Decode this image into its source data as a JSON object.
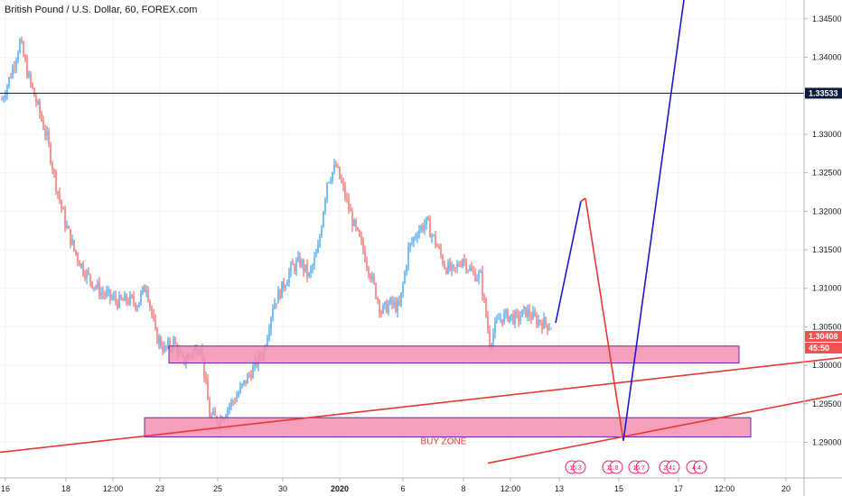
{
  "header": {
    "title": "British Pound / U.S. Dollar, 60, FOREX.com"
  },
  "chart_data": {
    "type": "candlestick",
    "title": "British Pound / U.S. Dollar, 60, FOREX.com",
    "y_ticks": [
      "1.34500",
      "1.34000",
      "1.33500",
      "1.33000",
      "1.32500",
      "1.32000",
      "1.31500",
      "1.31000",
      "1.30500",
      "1.30000",
      "1.29500",
      "1.29000"
    ],
    "y_tick_values": [
      1.345,
      1.34,
      1.335,
      1.33,
      1.325,
      1.32,
      1.315,
      1.31,
      1.305,
      1.3,
      1.295,
      1.29
    ],
    "x_ticks": [
      "16",
      "18",
      "12:00",
      "23",
      "25",
      "30",
      "2020",
      "6",
      "8",
      "12:00",
      "13",
      "15",
      "17",
      "12:00",
      "20"
    ],
    "ylim": [
      1.2873,
      1.3495
    ],
    "price_path": [
      [
        0,
        1.3345
      ],
      [
        1,
        1.3378
      ],
      [
        2,
        1.342
      ],
      [
        3,
        1.3372
      ],
      [
        4,
        1.3335
      ],
      [
        5,
        1.3295
      ],
      [
        6,
        1.3235
      ],
      [
        7,
        1.3185
      ],
      [
        8,
        1.315
      ],
      [
        9,
        1.3125
      ],
      [
        10,
        1.3108
      ],
      [
        11,
        1.3095
      ],
      [
        12,
        1.3088
      ],
      [
        13,
        1.3082
      ],
      [
        14,
        1.3085
      ],
      [
        15,
        1.308
      ],
      [
        16,
        1.3105
      ],
      [
        17,
        1.304
      ],
      [
        18,
        1.302
      ],
      [
        19,
        1.303
      ],
      [
        20,
        1.3005
      ],
      [
        21,
        1.3015
      ],
      [
        22,
        1.3028
      ],
      [
        23,
        1.2935
      ],
      [
        24,
        1.2928
      ],
      [
        25,
        1.2945
      ],
      [
        26,
        1.296
      ],
      [
        27,
        1.298
      ],
      [
        28,
        1.3
      ],
      [
        29,
        1.302
      ],
      [
        30,
        1.3078
      ],
      [
        31,
        1.31
      ],
      [
        32,
        1.3125
      ],
      [
        33,
        1.3135
      ],
      [
        34,
        1.3115
      ],
      [
        35,
        1.315
      ],
      [
        36,
        1.324
      ],
      [
        37,
        1.3258
      ],
      [
        38,
        1.322
      ],
      [
        39,
        1.318
      ],
      [
        40,
        1.315
      ],
      [
        41,
        1.311
      ],
      [
        42,
        1.307
      ],
      [
        43,
        1.308
      ],
      [
        44,
        1.3075
      ],
      [
        45,
        1.315
      ],
      [
        46,
        1.3175
      ],
      [
        47,
        1.3185
      ],
      [
        48,
        1.316
      ],
      [
        49,
        1.313
      ],
      [
        50,
        1.312
      ],
      [
        51,
        1.314
      ],
      [
        52,
        1.312
      ],
      [
        53,
        1.3115
      ],
      [
        54,
        1.303
      ],
      [
        55,
        1.306
      ],
      [
        56,
        1.3065
      ],
      [
        57,
        1.306
      ],
      [
        58,
        1.307
      ],
      [
        59,
        1.306
      ],
      [
        60,
        1.3055
      ],
      [
        61,
        1.305
      ]
    ],
    "last_price_label": "1.30408",
    "countdown_label": "45:50",
    "horizontal_line": {
      "value": 1.33533,
      "label": "1.33533"
    },
    "zones": [
      {
        "name": "upper-zone",
        "top": 1.3025,
        "bottom": 1.3003,
        "label": ""
      },
      {
        "name": "buy-zone",
        "top": 1.2932,
        "bottom": 1.2907,
        "label": "BUY ZONE"
      }
    ],
    "projection_points": [
      [
        615,
        1.3055
      ],
      [
        643,
        1.3213
      ],
      [
        648,
        1.3217
      ],
      [
        690,
        1.2902
      ],
      [
        760,
        1.35
      ]
    ],
    "trendlines": [
      {
        "from": [
          0,
          1.2887
        ],
        "to": [
          932,
          1.301
        ]
      },
      {
        "from": [
          540,
          1.2873
        ],
        "to": [
          932,
          1.2963
        ]
      }
    ],
    "event_badges": [
      "15:3",
      "11:8",
      "16:7",
      "2:41",
      "4:4"
    ],
    "colors": {
      "up": "#2196f3",
      "down": "#ef5350",
      "zone_fill": "#f48fb1",
      "zone_border": "#5c2fa0",
      "trendline": "#e53935",
      "projection_down": "#e53935",
      "projection_up": "#1a1ac9",
      "hline": "#0d1b3e",
      "last_price_bg": "#ef5350",
      "grid": "#f0f3fa",
      "text": "#131722"
    }
  }
}
